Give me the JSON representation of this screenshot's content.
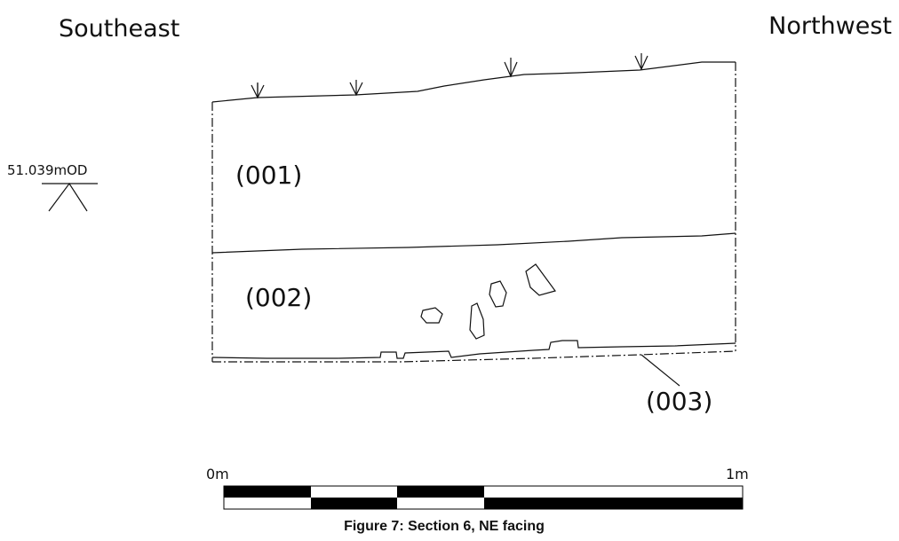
{
  "header": {
    "left": "Southeast",
    "right": "Northwest"
  },
  "datum": {
    "label": "51.039mOD"
  },
  "layers": [
    {
      "label": "(001)"
    },
    {
      "label": "(002)"
    },
    {
      "label": "(003)"
    }
  ],
  "scale": {
    "start": "0m",
    "end": "1m"
  },
  "caption": "Figure 7: Section 6, NE facing"
}
